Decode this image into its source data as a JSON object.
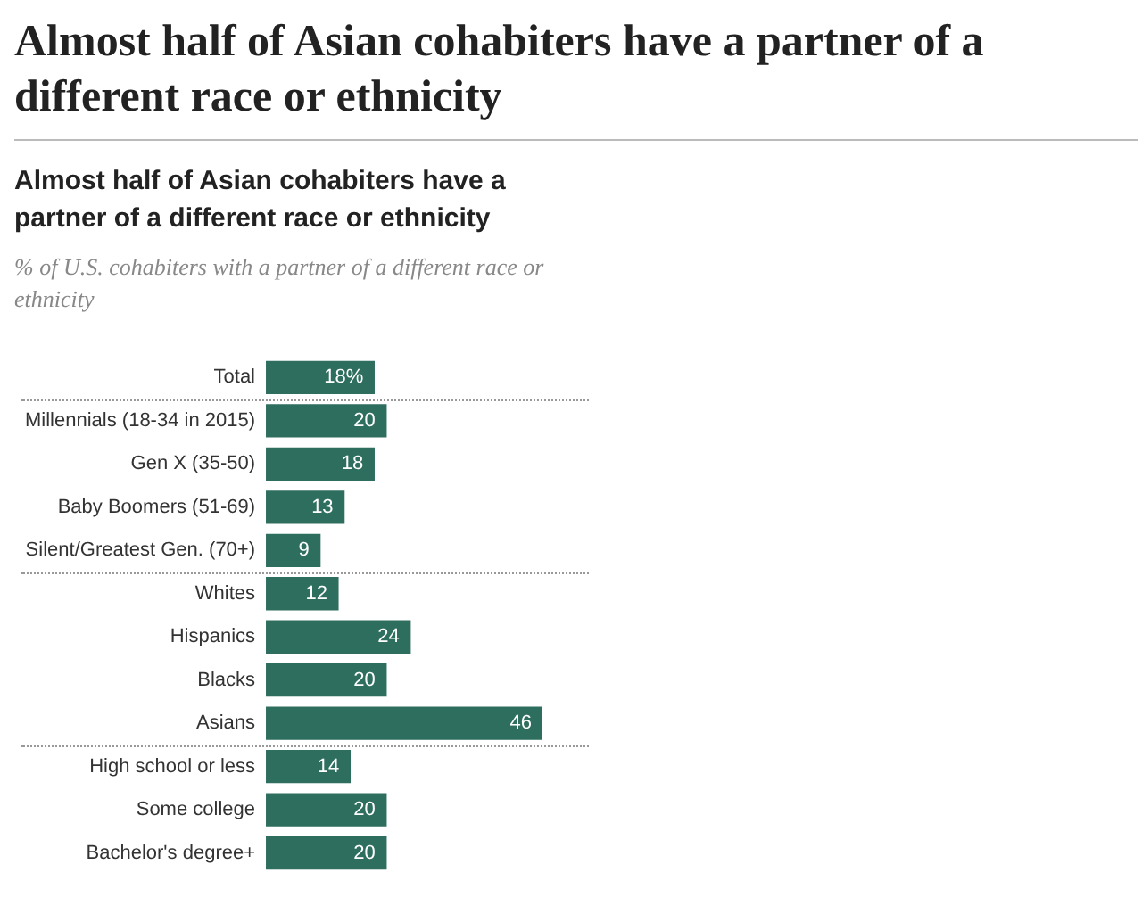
{
  "chart_data": {
    "type": "bar",
    "orientation": "horizontal",
    "title": "Almost half of Asian cohabiters have a partner of a different race or ethnicity",
    "subtitle": "Almost half of Asian cohabiters have a partner of a different race or ethnicity",
    "annotations": [
      "% of U.S. cohabiters with a partner of a different race or ethnicity"
    ],
    "categories": [
      "Total",
      "Millennials (18-34 in 2015)",
      "Gen X (35-50)",
      "Baby Boomers (51-69)",
      "Silent/Greatest Gen. (70+)",
      "Whites",
      "Hispanics",
      "Blacks",
      "Asians",
      "High school or less",
      "Some college",
      "Bachelor's degree+"
    ],
    "values": [
      18,
      20,
      18,
      13,
      9,
      12,
      24,
      20,
      46,
      14,
      20,
      20
    ],
    "value_labels": [
      "18%",
      "20",
      "18",
      "13",
      "9",
      "12",
      "24",
      "20",
      "46",
      "14",
      "20",
      "20"
    ],
    "color": "#2e6e5e",
    "grid": false,
    "legend": false
  }
}
